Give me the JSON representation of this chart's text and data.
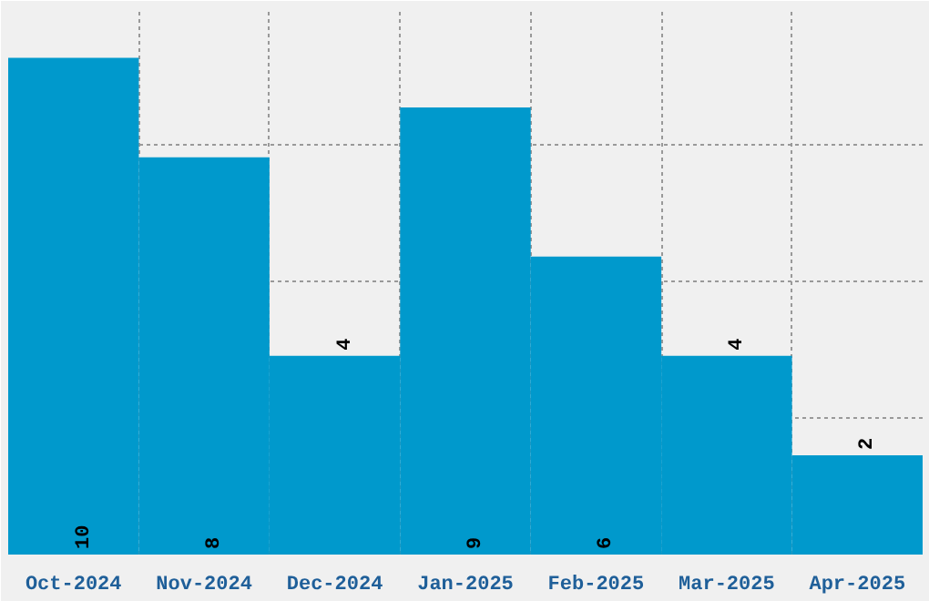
{
  "chart_data": {
    "type": "bar",
    "categories": [
      "Oct-2024",
      "Nov-2024",
      "Dec-2024",
      "Jan-2025",
      "Feb-2025",
      "Mar-2025",
      "Apr-2025"
    ],
    "values": [
      10,
      8,
      4,
      9,
      6,
      4,
      2
    ],
    "color": "#0099cc",
    "ylim": [
      0,
      11
    ],
    "yticks": [
      {
        "value": 0,
        "label": null
      },
      {
        "value": 2.75,
        "label": null
      },
      {
        "value": 5.5,
        "label": null
      },
      {
        "value": 8.25,
        "label": null
      },
      {
        "value": 11,
        "label": null
      }
    ],
    "tick_labels": "x",
    "grid": true,
    "data_labels": true
  }
}
